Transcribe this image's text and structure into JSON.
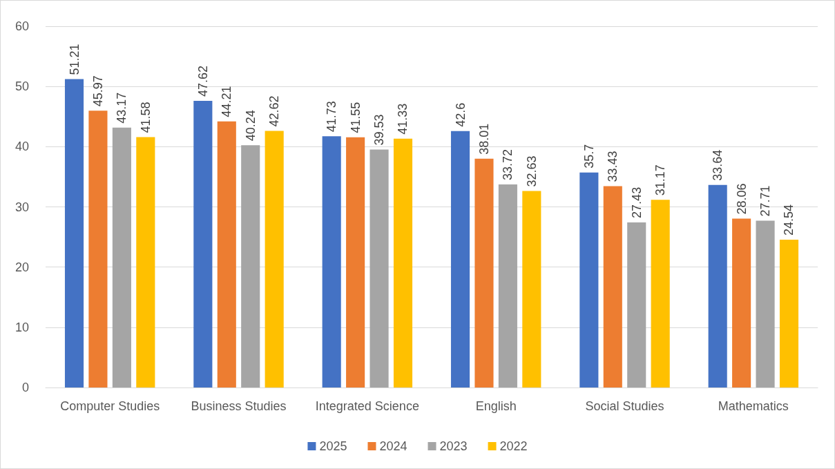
{
  "chart_data": {
    "type": "bar",
    "categories": [
      "Computer Studies",
      "Business Studies",
      "Integrated Science",
      "English",
      "Social Studies",
      "Mathematics"
    ],
    "series": [
      {
        "name": "2025",
        "color": "#4472c4",
        "values": [
          51.21,
          47.62,
          41.73,
          42.6,
          35.7,
          33.64
        ]
      },
      {
        "name": "2024",
        "color": "#ed7d31",
        "values": [
          45.97,
          44.21,
          41.55,
          38.01,
          33.43,
          28.06
        ]
      },
      {
        "name": "2023",
        "color": "#a5a5a5",
        "values": [
          43.17,
          40.24,
          39.53,
          33.72,
          27.43,
          27.71
        ]
      },
      {
        "name": "2022",
        "color": "#ffc000",
        "values": [
          41.58,
          42.62,
          41.33,
          32.63,
          31.17,
          24.54
        ]
      }
    ],
    "ylim": [
      0,
      60
    ],
    "yticks": [
      0,
      10,
      20,
      30,
      40,
      50,
      60
    ],
    "grid": "y",
    "legend": "bottom",
    "data_labels": true
  }
}
